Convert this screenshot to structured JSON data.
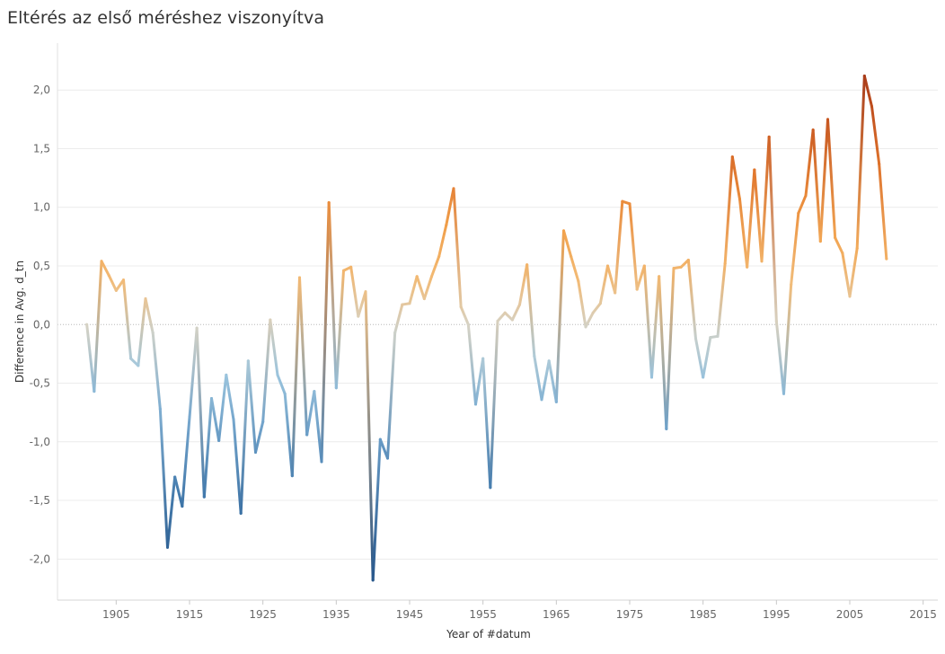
{
  "title": "Eltérés az első méréshez viszonyítva",
  "chart_data": {
    "type": "line",
    "title": "Eltérés az első méréshez viszonyítva",
    "xlabel": "Year of #datum",
    "ylabel": "Difference in Avg. d_tn",
    "xlim": [
      1897,
      2017
    ],
    "ylim": [
      -2.35,
      2.4
    ],
    "x_ticks": [
      1905,
      1915,
      1925,
      1935,
      1945,
      1955,
      1965,
      1975,
      1985,
      1995,
      2005,
      2015
    ],
    "y_ticks": [
      2.0,
      1.5,
      1.0,
      0.5,
      0.0,
      -0.5,
      -1.0,
      -1.5,
      -2.0
    ],
    "y_tick_labels": [
      "2,0",
      "1,5",
      "1,0",
      "0,5",
      "0,0",
      "-0,5",
      "-1,0",
      "-1,5",
      "-2,0"
    ],
    "x_tick_labels": [
      "1905",
      "1915",
      "1925",
      "1935",
      "1945",
      "1955",
      "1965",
      "1975",
      "1985",
      "1995",
      "2005",
      "2015"
    ],
    "color_scale": {
      "low": "#2a5a8c",
      "mid": "#d6d2c4",
      "high": "#a63a1a"
    },
    "x": [
      1901,
      1902,
      1903,
      1904,
      1905,
      1906,
      1907,
      1908,
      1909,
      1910,
      1911,
      1912,
      1913,
      1914,
      1915,
      1916,
      1917,
      1918,
      1919,
      1920,
      1921,
      1922,
      1923,
      1924,
      1925,
      1926,
      1927,
      1928,
      1929,
      1930,
      1931,
      1932,
      1933,
      1934,
      1935,
      1936,
      1937,
      1938,
      1939,
      1940,
      1941,
      1942,
      1943,
      1944,
      1945,
      1946,
      1947,
      1948,
      1949,
      1950,
      1951,
      1952,
      1953,
      1954,
      1955,
      1956,
      1957,
      1958,
      1959,
      1960,
      1961,
      1962,
      1963,
      1964,
      1965,
      1966,
      1967,
      1968,
      1969,
      1970,
      1971,
      1972,
      1973,
      1974,
      1975,
      1976,
      1977,
      1978,
      1979,
      1980,
      1981,
      1982,
      1983,
      1984,
      1985,
      1986,
      1987,
      1988,
      1989,
      1990,
      1991,
      1992,
      1993,
      1994,
      1995,
      1996,
      1997,
      1998,
      1999,
      2000,
      2001,
      2002,
      2003,
      2004,
      2005,
      2006,
      2007,
      2008,
      2009,
      2010
    ],
    "values": [
      0.0,
      -0.57,
      0.54,
      0.42,
      0.29,
      0.38,
      -0.29,
      -0.35,
      0.22,
      -0.07,
      -0.72,
      -1.9,
      -1.3,
      -1.55,
      -0.79,
      -0.03,
      -1.47,
      -0.63,
      -0.99,
      -0.43,
      -0.81,
      -1.61,
      -0.31,
      -1.09,
      -0.83,
      0.04,
      -0.43,
      -0.59,
      -1.29,
      0.4,
      -0.94,
      -0.57,
      -1.17,
      1.04,
      -0.54,
      0.46,
      0.49,
      0.07,
      0.28,
      -2.18,
      -0.98,
      -1.14,
      -0.07,
      0.17,
      0.18,
      0.41,
      0.22,
      0.41,
      0.58,
      0.85,
      1.16,
      0.15,
      0.0,
      -0.68,
      -0.29,
      -1.39,
      0.03,
      0.1,
      0.04,
      0.17,
      0.51,
      -0.27,
      -0.64,
      -0.31,
      -0.66,
      0.8,
      0.58,
      0.37,
      -0.02,
      0.1,
      0.18,
      0.5,
      0.27,
      1.05,
      1.03,
      0.3,
      0.5,
      -0.45,
      0.41,
      -0.89,
      0.48,
      0.49,
      0.55,
      -0.12,
      -0.45,
      -0.11,
      -0.1,
      0.52,
      1.43,
      1.07,
      0.49,
      1.32,
      0.54,
      1.6,
      0.03,
      -0.59,
      0.34,
      0.95,
      1.1,
      1.66,
      0.71,
      1.75,
      0.74,
      0.61,
      0.24,
      0.65,
      2.12,
      1.86,
      1.37,
      0.56
    ]
  }
}
